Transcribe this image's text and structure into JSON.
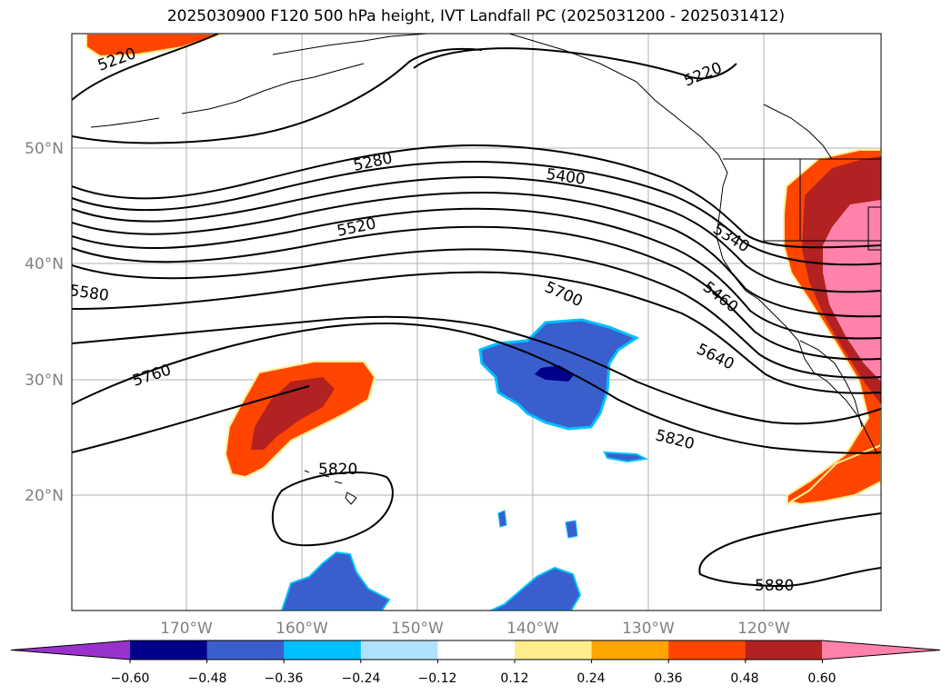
{
  "title": "2025030900 F120 500 hPa height, IVT Landfall PC (2025031200 - 2025031412)",
  "map": {
    "lat_ticks": [
      "50°N",
      "40°N",
      "30°N",
      "20°N"
    ],
    "lon_ticks": [
      "170°W",
      "160°W",
      "150°W",
      "140°W",
      "130°W",
      "120°W"
    ],
    "contour_labels": [
      "5220",
      "5220",
      "5280",
      "5400",
      "5340",
      "5520",
      "5580",
      "5460",
      "5700",
      "5640",
      "5760",
      "5820",
      "5820",
      "5880"
    ],
    "contour_values": [
      5220,
      5280,
      5340,
      5400,
      5460,
      5520,
      5580,
      5640,
      5700,
      5760,
      5820,
      5880
    ]
  },
  "colorbar": {
    "colors": [
      "#9932cc",
      "#00008b",
      "#3a5fcd",
      "#00bfff",
      "#b0e2ff",
      "#ffffff",
      "#ffec8b",
      "#ffa500",
      "#ff4500",
      "#b22222",
      "#ff82ab"
    ],
    "tick_labels": [
      "−0.60",
      "−0.48",
      "−0.36",
      "−0.24",
      "−0.12",
      "0.12",
      "0.24",
      "0.36",
      "0.48",
      "0.60"
    ]
  }
}
